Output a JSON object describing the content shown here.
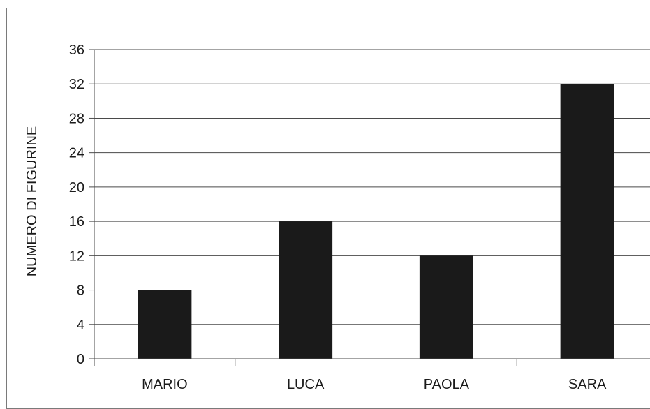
{
  "chart_data": {
    "type": "bar",
    "title": "",
    "xlabel": "",
    "ylabel": "NUMERO DI FIGURINE",
    "categories": [
      "MARIO",
      "LUCA",
      "PAOLA",
      "SARA"
    ],
    "values": [
      8,
      16,
      12,
      32
    ],
    "ylim": [
      0,
      36
    ],
    "yticks": [
      0,
      4,
      8,
      12,
      16,
      20,
      24,
      28,
      32,
      36
    ],
    "grid": true,
    "legend": "none",
    "bar_color": "#1a1a1a",
    "grid_color": "#4a4a4a"
  }
}
